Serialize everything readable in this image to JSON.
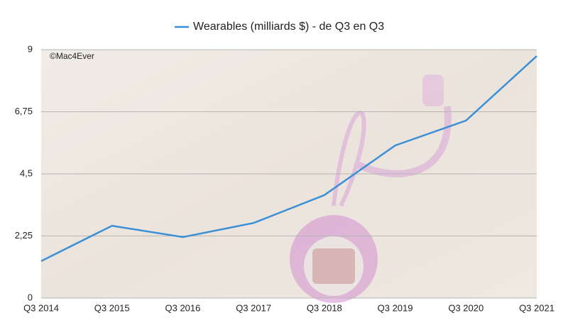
{
  "chart_data": {
    "type": "line",
    "annotation": "©Mac4Ever",
    "categories": [
      "Q3 2014",
      "Q3 2015",
      "Q3 2016",
      "Q3 2017",
      "Q3 2018",
      "Q3 2019",
      "Q3 2020",
      "Q3 2021"
    ],
    "series": [
      {
        "name": "Wearables (milliards $) - de Q3 en Q3",
        "color": "#3b8fd6",
        "values": [
          1.34,
          2.62,
          2.21,
          2.72,
          3.73,
          5.53,
          6.43,
          8.77
        ]
      }
    ],
    "ylim": [
      0,
      9
    ],
    "yticks": [
      0,
      {
        "value": 2.25,
        "label": "2,25"
      },
      {
        "value": 4.5,
        "label": "4,5"
      },
      {
        "value": 6.75,
        "label": "6,75"
      },
      9
    ],
    "grid": true
  }
}
